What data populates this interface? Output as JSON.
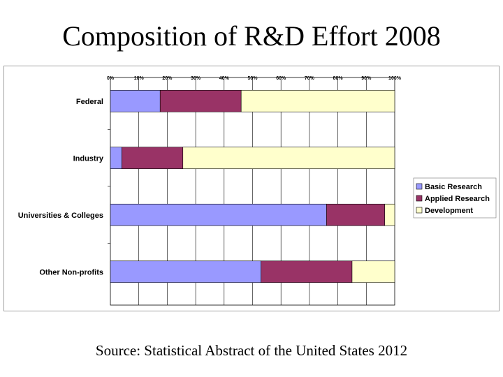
{
  "slide": {
    "title": "Composition of R&D Effort 2008",
    "source": "Source: Statistical Abstract of the United States 2012"
  },
  "chart_data": {
    "type": "bar",
    "orientation": "horizontal",
    "stacked": true,
    "title": "Composition of R&D Effort 2008",
    "xlabel": "",
    "ylabel": "",
    "xlim": [
      0,
      100
    ],
    "x_ticks": [
      "0%",
      "10%",
      "20%",
      "30%",
      "40%",
      "50%",
      "60%",
      "70%",
      "80%",
      "90%",
      "100%"
    ],
    "grid": true,
    "legend_position": "right",
    "categories": [
      "Federal",
      "Industry",
      "Universities & Colleges",
      "Other Non-profits"
    ],
    "series": [
      {
        "name": "Basic Research",
        "color": "#9999ff",
        "values": [
          17.5,
          4,
          76,
          53
        ]
      },
      {
        "name": "Applied Research",
        "color": "#993366",
        "values": [
          28.5,
          21.5,
          20.5,
          32
        ]
      },
      {
        "name": "Development",
        "color": "#ffffcc",
        "values": [
          54,
          74.5,
          3.5,
          15
        ]
      }
    ]
  }
}
